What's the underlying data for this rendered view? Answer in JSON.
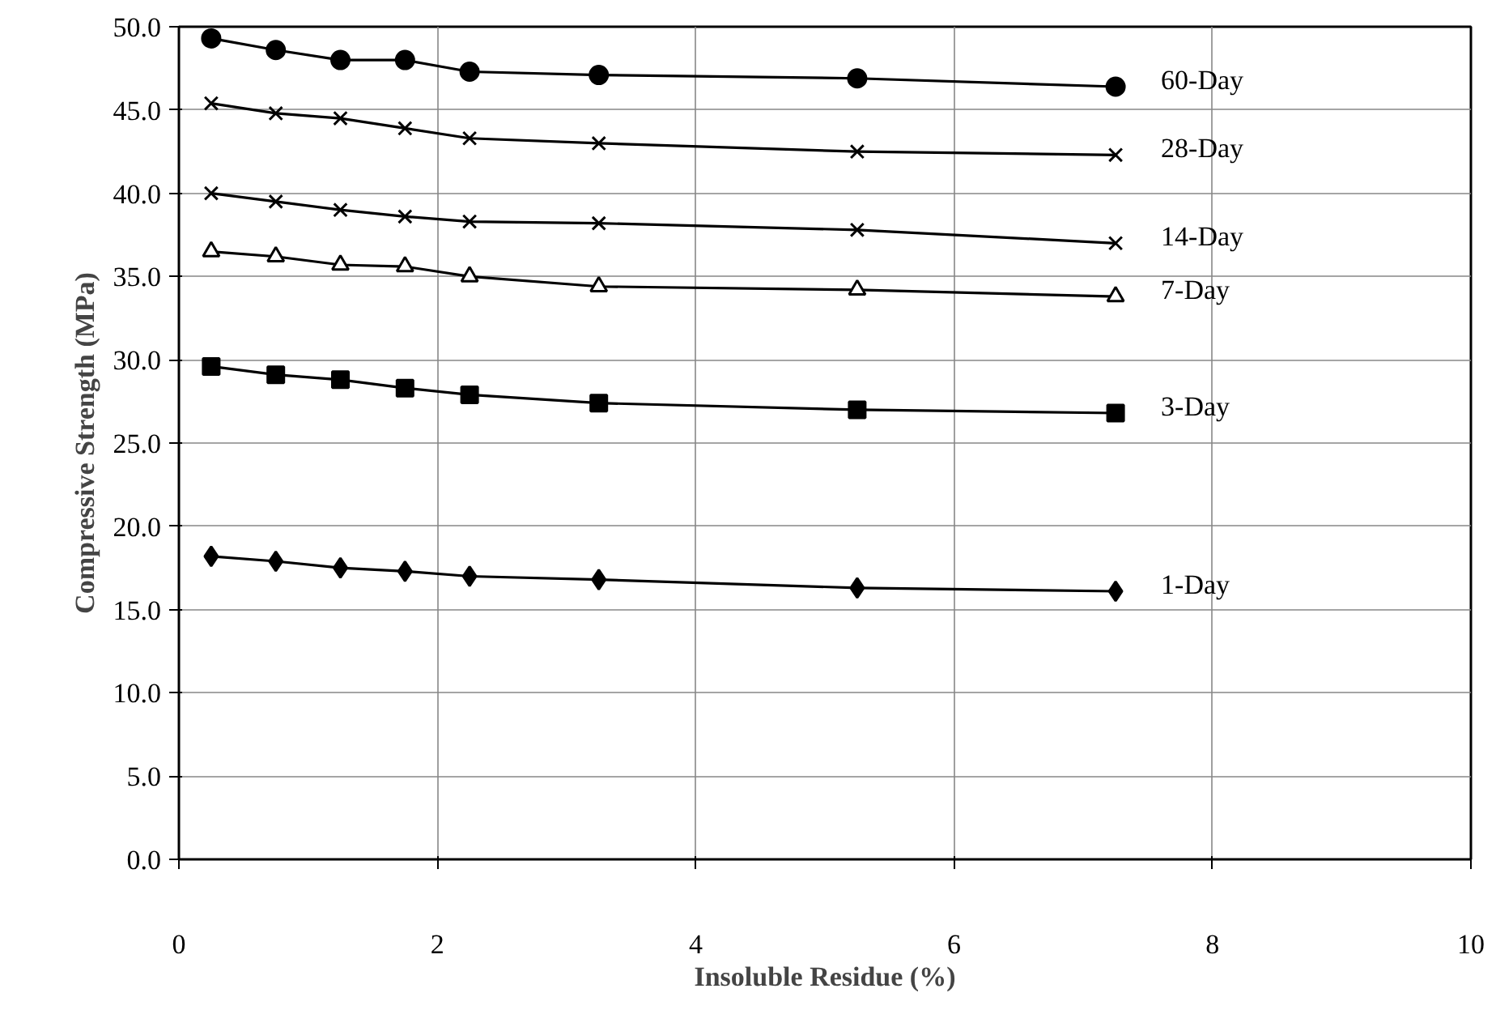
{
  "chart_data": {
    "type": "line",
    "xlabel": "Insoluble Residue (%)",
    "ylabel": "Compressive Strength (MPa)",
    "x": [
      0.25,
      0.75,
      1.25,
      1.75,
      2.25,
      3.25,
      5.25,
      7.25
    ],
    "series": [
      {
        "name": "60-Day",
        "color": "#000000",
        "marker": "circle",
        "values": [
          49.3,
          48.6,
          48.0,
          48.0,
          47.3,
          47.1,
          46.9,
          46.4
        ]
      },
      {
        "name": "28-Day",
        "color": "#000000",
        "marker": "cross",
        "values": [
          45.4,
          44.8,
          44.5,
          43.9,
          43.3,
          43.0,
          42.5,
          42.3
        ]
      },
      {
        "name": "14-Day",
        "color": "#000000",
        "marker": "cross",
        "values": [
          40.0,
          39.5,
          39.0,
          38.6,
          38.3,
          38.2,
          37.8,
          37.0
        ]
      },
      {
        "name": "7-Day",
        "color": "#000000",
        "marker": "triangle",
        "values": [
          36.5,
          36.2,
          35.7,
          35.6,
          35.0,
          34.4,
          34.2,
          33.8
        ]
      },
      {
        "name": "3-Day",
        "color": "#000000",
        "marker": "square",
        "values": [
          29.6,
          29.1,
          28.8,
          28.3,
          27.9,
          27.4,
          27.0,
          26.8
        ]
      },
      {
        "name": "1-Day",
        "color": "#000000",
        "marker": "diamond",
        "values": [
          18.2,
          17.9,
          17.5,
          17.3,
          17.0,
          16.8,
          16.3,
          16.1
        ]
      }
    ],
    "xlim": [
      0,
      10
    ],
    "xticks": [
      0,
      2,
      4,
      6,
      8,
      10
    ],
    "ylim": [
      0,
      50
    ],
    "yticks": [
      {
        "value": 0,
        "label": "0.0"
      },
      {
        "value": 5,
        "label": "5.0"
      },
      {
        "value": 10,
        "label": "10.0"
      },
      {
        "value": 15,
        "label": "15.0"
      },
      {
        "value": 20,
        "label": "20.0"
      },
      {
        "value": 25,
        "label": "25.0"
      },
      {
        "value": 30,
        "label": "30.0"
      },
      {
        "value": 35,
        "label": "35.0"
      },
      {
        "value": 40,
        "label": "40.0"
      },
      {
        "value": 45,
        "label": "45.0"
      },
      {
        "value": 50,
        "label": "50.0"
      }
    ],
    "grid": true,
    "legend": false,
    "line_style": "solid"
  }
}
